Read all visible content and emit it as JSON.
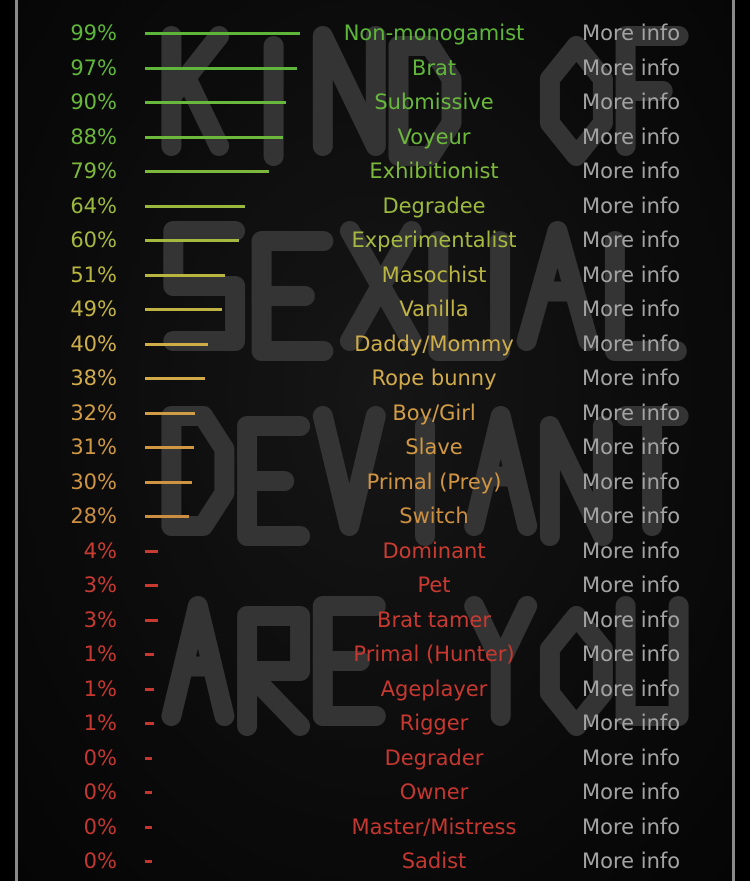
{
  "background_text": "KIND OF SEXUAL DEVIANT ARE YOU",
  "more_info_label": "More info",
  "results": [
    {
      "percent": 99,
      "label": "99%",
      "name": "Non-monogamist",
      "color": "#5db53a"
    },
    {
      "percent": 97,
      "label": "97%",
      "name": "Brat",
      "color": "#5fb63a"
    },
    {
      "percent": 90,
      "label": "90%",
      "name": "Submissive",
      "color": "#68b83b"
    },
    {
      "percent": 88,
      "label": "88%",
      "name": "Voyeur",
      "color": "#6bb83b"
    },
    {
      "percent": 79,
      "label": "79%",
      "name": "Exhibitionist",
      "color": "#7db83c"
    },
    {
      "percent": 64,
      "label": "64%",
      "name": "Degradee",
      "color": "#9bb83e"
    },
    {
      "percent": 60,
      "label": "60%",
      "name": "Experimentalist",
      "color": "#a6b83f"
    },
    {
      "percent": 51,
      "label": "51%",
      "name": "Masochist",
      "color": "#b8b540"
    },
    {
      "percent": 49,
      "label": "49%",
      "name": "Vanilla",
      "color": "#c0b243"
    },
    {
      "percent": 40,
      "label": "40%",
      "name": "Daddy/Mommy",
      "color": "#cfae4a"
    },
    {
      "percent": 38,
      "label": "38%",
      "name": "Rope bunny",
      "color": "#d1aa4a"
    },
    {
      "percent": 32,
      "label": "32%",
      "name": "Boy/Girl",
      "color": "#d09c45"
    },
    {
      "percent": 31,
      "label": "31%",
      "name": "Slave",
      "color": "#d09843"
    },
    {
      "percent": 30,
      "label": "30%",
      "name": "Primal (Prey)",
      "color": "#cf9442"
    },
    {
      "percent": 28,
      "label": "28%",
      "name": "Switch",
      "color": "#cc8e40"
    },
    {
      "percent": 4,
      "label": "4%",
      "name": "Dominant",
      "color": "#c83c32"
    },
    {
      "percent": 3,
      "label": "3%",
      "name": "Pet",
      "color": "#c83a31"
    },
    {
      "percent": 3,
      "label": "3%",
      "name": "Brat tamer",
      "color": "#c83a31"
    },
    {
      "percent": 1,
      "label": "1%",
      "name": "Primal (Hunter)",
      "color": "#c63830"
    },
    {
      "percent": 1,
      "label": "1%",
      "name": "Ageplayer",
      "color": "#c63830"
    },
    {
      "percent": 1,
      "label": "1%",
      "name": "Rigger",
      "color": "#c63830"
    },
    {
      "percent": 0,
      "label": "0%",
      "name": "Degrader",
      "color": "#c43730"
    },
    {
      "percent": 0,
      "label": "0%",
      "name": "Owner",
      "color": "#c43730"
    },
    {
      "percent": 0,
      "label": "0%",
      "name": "Master/Mistress",
      "color": "#c43730"
    },
    {
      "percent": 0,
      "label": "0%",
      "name": "Sadist",
      "color": "#c43730"
    }
  ]
}
